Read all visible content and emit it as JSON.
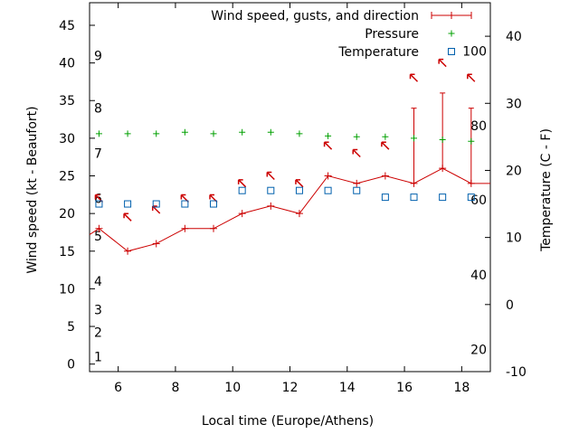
{
  "chart_data": {
    "type": "line",
    "title": "",
    "xlabel": "Local time (Europe/Athens)",
    "ylabel": "Wind speed (kt - Beaufort)",
    "y2label": "Temperature (C - F)",
    "xlim": [
      5,
      19
    ],
    "ylim": [
      -1,
      48
    ],
    "y2lim": [
      -10,
      45
    ],
    "x_ticks": [
      6,
      8,
      10,
      12,
      14,
      16,
      18
    ],
    "y_ticks": [
      0,
      5,
      10,
      15,
      20,
      25,
      30,
      35,
      40,
      45
    ],
    "y2_ticks": [
      -10,
      0,
      10,
      20,
      30,
      40
    ],
    "beaufort_labels": [
      {
        "label": "1",
        "value": 1.0
      },
      {
        "label": "2",
        "value": 4.2
      },
      {
        "label": "3",
        "value": 7.2
      },
      {
        "label": "4",
        "value": 11.0
      },
      {
        "label": "5",
        "value": 17.0
      },
      {
        "label": "6",
        "value": 22.0
      },
      {
        "label": "7",
        "value": 28.0
      },
      {
        "label": "8",
        "value": 34.0
      },
      {
        "label": "9",
        "value": 41.0
      }
    ],
    "fahrenheit_labels": [
      {
        "label": "20",
        "value": -6.7
      },
      {
        "label": "40",
        "value": 4.4
      },
      {
        "label": "60",
        "value": 15.6
      },
      {
        "label": "80",
        "value": 26.7
      },
      {
        "label": "100",
        "value": 37.8
      }
    ],
    "legend_position": "top-right",
    "grid": false,
    "series": [
      {
        "name": "Wind speed, gusts, and direction",
        "axis": "left",
        "color": "#cc0000",
        "x": [
          5.0,
          5.33,
          6.33,
          7.33,
          8.33,
          9.33,
          10.33,
          11.33,
          12.33,
          13.33,
          14.33,
          15.33,
          16.33,
          17.33,
          18.33,
          19.0
        ],
        "values": [
          17.2,
          18,
          15,
          16,
          18,
          18,
          20,
          21,
          20,
          25,
          24,
          25,
          24,
          26,
          24,
          24
        ],
        "gusts": [
          null,
          null,
          null,
          null,
          null,
          null,
          null,
          null,
          null,
          null,
          null,
          null,
          34,
          36,
          34,
          null
        ],
        "direction_arrows": [
          {
            "x": 5.33,
            "y": 22.0
          },
          {
            "x": 6.33,
            "y": 19.5
          },
          {
            "x": 7.33,
            "y": 20.5
          },
          {
            "x": 8.33,
            "y": 22.0
          },
          {
            "x": 9.33,
            "y": 22.0
          },
          {
            "x": 10.33,
            "y": 24.0
          },
          {
            "x": 11.33,
            "y": 25.0
          },
          {
            "x": 12.33,
            "y": 24.0
          },
          {
            "x": 13.33,
            "y": 29.0
          },
          {
            "x": 14.33,
            "y": 28.0
          },
          {
            "x": 15.33,
            "y": 29.0
          },
          {
            "x": 16.33,
            "y": 38.0
          },
          {
            "x": 17.33,
            "y": 40.0
          },
          {
            "x": 18.33,
            "y": 38.0
          }
        ]
      },
      {
        "name": "Pressure",
        "axis": "left",
        "color": "#00a000",
        "x": [
          5.33,
          6.33,
          7.33,
          8.33,
          9.33,
          10.33,
          11.33,
          12.33,
          13.33,
          14.33,
          15.33,
          16.33,
          17.33,
          18.33
        ],
        "values": [
          30.6,
          30.6,
          30.6,
          30.8,
          30.6,
          30.8,
          30.8,
          30.6,
          30.3,
          30.2,
          30.2,
          30.0,
          29.8,
          29.6
        ]
      },
      {
        "name": "Temperature",
        "axis": "right",
        "color": "#0060ad",
        "x": [
          5.33,
          6.33,
          7.33,
          8.33,
          9.33,
          10.33,
          11.33,
          12.33,
          13.33,
          14.33,
          15.33,
          16.33,
          17.33,
          18.33
        ],
        "values": [
          15,
          15,
          15,
          15,
          15,
          17,
          17,
          17,
          17,
          17,
          16,
          16,
          16,
          16
        ]
      }
    ]
  }
}
